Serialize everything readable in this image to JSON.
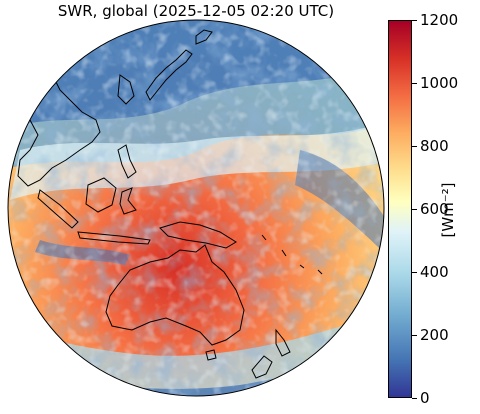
{
  "title": "SWR, global (2025-12-05 02:20 UTC)",
  "colorbar": {
    "label": "[Wm⁻²]",
    "ticks": [
      {
        "label": "1200"
      },
      {
        "label": "1000"
      },
      {
        "label": "800"
      },
      {
        "label": "600"
      },
      {
        "label": "400"
      },
      {
        "label": "200"
      },
      {
        "label": "0"
      }
    ],
    "range": [
      0,
      1200
    ],
    "colormap": [
      "#313695",
      "#4575b4",
      "#74add1",
      "#abd9e9",
      "#e0f3f8",
      "#ffffbf",
      "#fee090",
      "#fdae61",
      "#f46d43",
      "#d73027",
      "#a50026"
    ]
  },
  "map": {
    "projection": "geostationary",
    "coastlines": "black"
  }
}
